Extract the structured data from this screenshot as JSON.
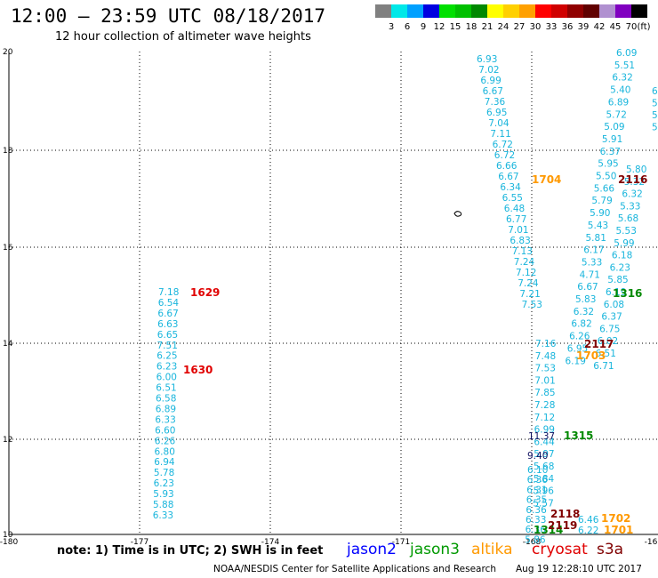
{
  "header": {
    "title": "12:00 – 23:59 UTC 08/18/2017",
    "subtitle": "12 hour collection of altimeter wave heights"
  },
  "colorbar": {
    "unit_label": "(ft)",
    "colors": [
      "#808080",
      "#00e8e8",
      "#00a0ff",
      "#0000e0",
      "#00e000",
      "#00c000",
      "#008800",
      "#ffff00",
      "#ffd000",
      "#ffa000",
      "#ff0000",
      "#d00000",
      "#900000",
      "#600000",
      "#b090d0",
      "#8000c0",
      "#000000"
    ],
    "labels": [
      "3",
      "6",
      "9",
      "12",
      "15",
      "18",
      "21",
      "24",
      "27",
      "30",
      "33",
      "36",
      "39",
      "42",
      "45",
      "70"
    ]
  },
  "map": {
    "x_ticks": [
      "-180",
      "-177",
      "-174",
      "-171",
      "-168",
      "-16"
    ],
    "y_ticks": [
      "20",
      "18",
      "16",
      "14",
      "12",
      "10"
    ]
  },
  "track_values": {
    "track_a": [
      "7.18",
      "6.54",
      "6.67",
      "6.63",
      "6.65",
      "7.51",
      "6.25",
      "6.23",
      "6.00",
      "6.51",
      "6.58",
      "6.89",
      "6.33",
      "6.60",
      "6.26",
      "6.80",
      "6.94",
      "5.78",
      "6.23",
      "5.93",
      "5.88",
      "6.33"
    ],
    "track_b": [
      "6.93",
      "7.02",
      "6.99",
      "6.67",
      "7.36",
      "6.95",
      "7.04",
      "7.11",
      "6.72",
      "6.72",
      "6.66",
      "6.67",
      "6.34",
      "6.55",
      "6.48",
      "6.77",
      "7.01",
      "6.83",
      "7.13",
      "7.24",
      "7.12",
      "7.24",
      "7.21",
      "7.53"
    ],
    "track_c": [
      "6.09",
      "5.51",
      "6.32",
      "5.40",
      "6.89",
      "5.72",
      "5.09",
      "5.91",
      "6.37",
      "5.95",
      "5.50",
      "5.66",
      "5.79",
      "5.90",
      "5.43",
      "5.81",
      "6.17",
      "5.33",
      "4.71",
      "6.67",
      "5.83",
      "6.32",
      "6.82",
      "6.26",
      "6.95",
      "6.19"
    ],
    "track_d": [
      "5.80",
      "5.32",
      "6.32",
      "5.33",
      "5.68",
      "5.53",
      "5.99",
      "6.18",
      "6.23",
      "5.85",
      "6.19",
      "6.08",
      "6.37",
      "6.75",
      "6.02",
      "6.51",
      "6.71"
    ],
    "track_e": [
      "7.16",
      "7.48",
      "7.53",
      "7.01",
      "7.85",
      "7.28",
      "7.12",
      "6.99",
      "6.44",
      "5.97",
      "5.68",
      "5.84",
      "5.96",
      "5.57"
    ],
    "track_f": [
      "6.10",
      "6.36",
      "6.31",
      "6.35",
      "6.36",
      "6.33",
      "6.36",
      "5.86"
    ],
    "track_g": [
      "6.46",
      "6.22"
    ],
    "partial_right": [
      "6",
      "5",
      "5",
      "5"
    ]
  },
  "labels": {
    "time_labels": [
      {
        "text": "1629",
        "color": "#e00000"
      },
      {
        "text": "1630",
        "color": "#e00000"
      },
      {
        "text": "1704",
        "color": "#ff9900"
      },
      {
        "text": "2116",
        "color": "#800000"
      },
      {
        "text": "1316",
        "color": "#008800"
      },
      {
        "text": "2117",
        "color": "#800000"
      },
      {
        "text": "1703",
        "color": "#ff9900"
      },
      {
        "text": "1315",
        "color": "#008800"
      },
      {
        "text": "1314",
        "color": "#008800"
      },
      {
        "text": "2118",
        "color": "#800000"
      },
      {
        "text": "2119",
        "color": "#800000"
      },
      {
        "text": "1702",
        "color": "#ff9900"
      },
      {
        "text": "1701",
        "color": "#ff9900"
      }
    ],
    "dark_values": [
      "9.40",
      "11.37"
    ]
  },
  "footer": {
    "note": "note: 1) Time is in UTC; 2) SWH is in feet",
    "legend": [
      {
        "name": "jason2",
        "color": "#0000ff"
      },
      {
        "name": "jason3",
        "color": "#009900"
      },
      {
        "name": "altika",
        "color": "#ff9900"
      },
      {
        "name": "cryosat",
        "color": "#e00000"
      },
      {
        "name": "s3a",
        "color": "#800000"
      }
    ],
    "credit": "NOAA/NESDIS Center for Satellite Applications and Research",
    "timestamp": "Aug 19 12:28:10 UTC 2017"
  }
}
